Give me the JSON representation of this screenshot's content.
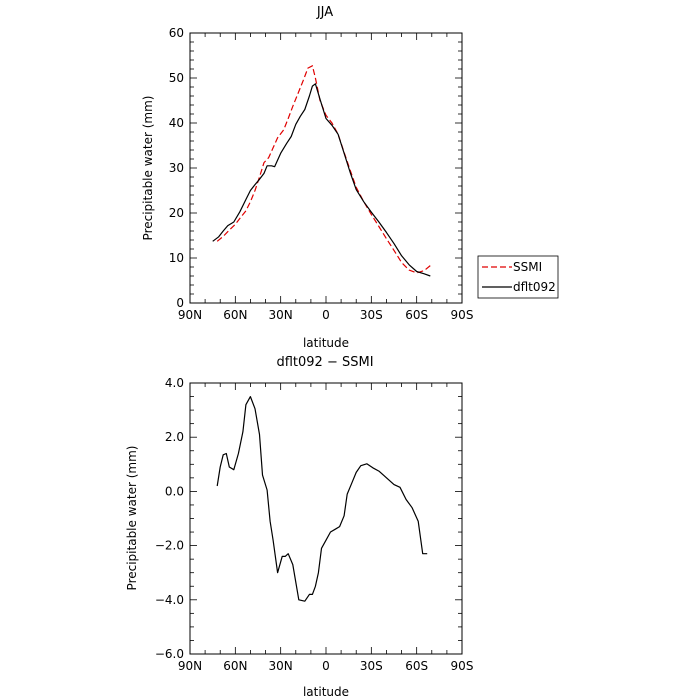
{
  "chart_data": [
    {
      "type": "line",
      "title": "JJA",
      "xlabel": "latitude",
      "ylabel": "Precipitable water (mm)",
      "xlim": [
        90,
        -90
      ],
      "ylim": [
        0,
        60
      ],
      "x_ticks": [
        90,
        60,
        30,
        0,
        -30,
        -60,
        -90
      ],
      "x_tick_labels": [
        "90N",
        "60N",
        "30N",
        "0",
        "30S",
        "60S",
        "90S"
      ],
      "y_ticks": [
        0,
        10,
        20,
        30,
        40,
        50,
        60
      ],
      "y_tick_labels": [
        "0",
        "10",
        "20",
        "30",
        "40",
        "50",
        "60"
      ],
      "legend_position": "right",
      "series": [
        {
          "name": "SSMI",
          "color": "#e00000",
          "style": "dashed",
          "x": [
            72,
            68,
            64,
            60,
            57,
            53,
            50,
            47,
            44,
            41,
            38,
            35,
            32,
            28,
            25,
            22,
            18,
            15,
            12,
            9,
            7,
            4,
            0,
            -4,
            -8,
            -12,
            -16,
            -20,
            -25,
            -30,
            -35,
            -40,
            -45,
            -50,
            -55,
            -60,
            -65,
            -69
          ],
          "y": [
            13.7,
            14.8,
            16.2,
            17.5,
            18.8,
            20.5,
            22.5,
            25,
            28,
            31.2,
            32.3,
            34.5,
            36.7,
            38.5,
            41,
            43.7,
            47,
            49.5,
            52.2,
            52.7,
            50,
            45,
            41.7,
            40,
            37.5,
            33.5,
            29.5,
            25.7,
            22.5,
            19.7,
            17,
            14.3,
            11.7,
            9,
            7.3,
            6.7,
            7.2,
            8.3
          ]
        },
        {
          "name": "dflt092",
          "color": "#000000",
          "style": "solid",
          "x": [
            75,
            71,
            68,
            65,
            61,
            57,
            53,
            50,
            47,
            44,
            41,
            39,
            36,
            34,
            30,
            26,
            23,
            20,
            17,
            14,
            11,
            9,
            7,
            4,
            0,
            -4,
            -8,
            -12,
            -16,
            -20,
            -25,
            -30,
            -35,
            -40,
            -45,
            -50,
            -55,
            -60,
            -65,
            -69
          ],
          "y": [
            13.7,
            14.7,
            16,
            17.2,
            18,
            20.3,
            23,
            25,
            26.3,
            27.5,
            28.8,
            30.5,
            30.5,
            30.3,
            33.3,
            35.5,
            37,
            39.7,
            41.5,
            43,
            46,
            48.2,
            48.7,
            45.3,
            41,
            39.5,
            37.5,
            33.3,
            29,
            25.2,
            22.5,
            20.2,
            18,
            15.7,
            13.2,
            10.5,
            8.5,
            7,
            6.5,
            6
          ]
        }
      ]
    },
    {
      "type": "line",
      "title": "dflt092 − SSMI",
      "xlabel": "latitude",
      "ylabel": "Precipitable water (mm)",
      "xlim": [
        90,
        -90
      ],
      "ylim": [
        -6,
        4
      ],
      "x_ticks": [
        90,
        60,
        30,
        0,
        -30,
        -60,
        -90
      ],
      "x_tick_labels": [
        "90N",
        "60N",
        "30N",
        "0",
        "30S",
        "60S",
        "90S"
      ],
      "y_ticks": [
        -6,
        -4,
        -2,
        0,
        2,
        4
      ],
      "y_tick_labels": [
        "−6.0",
        "−4.0",
        "−2.0",
        "0.0",
        "2.0",
        "4.0"
      ],
      "series": [
        {
          "name": "",
          "color": "#000000",
          "style": "solid",
          "x": [
            72,
            70,
            68,
            66,
            64,
            61,
            58,
            55,
            53,
            50,
            47,
            44,
            42,
            39,
            37,
            35,
            32,
            29,
            27,
            25,
            22,
            18,
            14,
            11,
            9,
            7,
            5,
            3,
            0,
            -3,
            -6,
            -9,
            -12,
            -14,
            -17,
            -20,
            -23,
            -27,
            -31,
            -35,
            -38,
            -41,
            -45,
            -49,
            -53,
            -57,
            -61,
            -64,
            -67
          ],
          "y": [
            0.2,
            0.9,
            1.35,
            1.4,
            0.9,
            0.8,
            1.4,
            2.2,
            3.2,
            3.5,
            3.05,
            2.1,
            0.6,
            0.05,
            -1.1,
            -1.8,
            -3,
            -2.4,
            -2.4,
            -2.3,
            -2.7,
            -4,
            -4.05,
            -3.8,
            -3.8,
            -3.5,
            -3,
            -2.1,
            -1.8,
            -1.5,
            -1.4,
            -1.3,
            -0.9,
            -0.1,
            0.3,
            0.7,
            0.95,
            1.02,
            0.87,
            0.75,
            0.6,
            0.45,
            0.25,
            0.15,
            -0.3,
            -0.6,
            -1.1,
            -2.3,
            -2.3
          ]
        }
      ]
    }
  ]
}
